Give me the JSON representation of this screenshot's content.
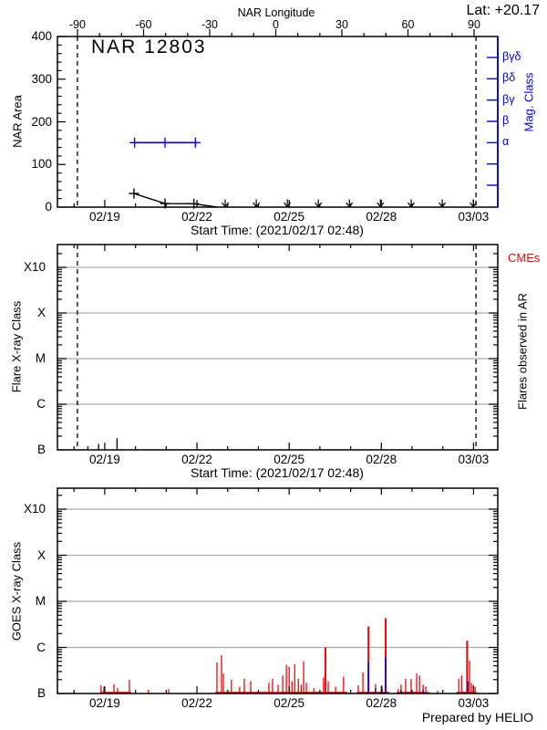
{
  "labels": {
    "lat": "Lat: +20.17",
    "top_axis_title": "NAR Longitude",
    "panel1_title": "NAR 12803",
    "panel1_ylabel": "NAR Area",
    "mag_class_axis": "Mag. Class",
    "start_time": "Start Time: (2021/02/17 02:48)",
    "panel2_ylabel": "Flare X-ray Class",
    "cmes": "CMEs",
    "flares_observed": "Flares observed in AR",
    "panel3_ylabel": "GOES X-ray Class",
    "credit": "Prepared by HELIO"
  },
  "colors": {
    "blue": "#0000ee",
    "red": "#ff0000",
    "grid": "#aaaaaa",
    "black": "#000000"
  },
  "chart_data": [
    {
      "type": "line",
      "panel": "nar-area",
      "title": "NAR 12803",
      "latitude": "+20.17",
      "x_axis": {
        "label": "Start Time: (2021/02/17 02:48)",
        "tick_days": [
          19,
          22,
          25,
          28,
          31
        ],
        "tick_labels": [
          "02/19",
          "02/22",
          "02/25",
          "02/28",
          "03/03"
        ],
        "range_days": [
          17.46,
          31.79
        ]
      },
      "top_axis": {
        "title": "NAR Longitude",
        "tick_lons": [
          -90,
          -60,
          -30,
          0,
          30,
          60,
          90
        ],
        "tick_labels": [
          "-90",
          "-60",
          "-30",
          "0",
          "30",
          "60",
          "90"
        ],
        "minor_step_deg": 10
      },
      "y_axis": {
        "label": "NAR Area",
        "range": [
          0,
          400
        ],
        "ticks": [
          0,
          100,
          200,
          300,
          400
        ],
        "minor_step": 20
      },
      "right_axis": {
        "label": "Mag. Class",
        "tick_labels": [
          "βγδ",
          "βδ",
          "βγ",
          "β",
          "α",
          "",
          ""
        ]
      },
      "limb_crossing_days": [
        18.11,
        31.08
      ],
      "area_series": {
        "days": [
          19.95,
          20.96,
          21.9
        ],
        "values": [
          32,
          8.5,
          8
        ],
        "tail_zero_day": 22.65
      },
      "area_upper_limit_days": [
        22.92,
        23.93,
        24.94,
        25.95,
        26.96,
        27.97,
        28.97,
        29.98,
        30.99
      ],
      "mag_series": {
        "days": [
          19.97,
          20.96,
          21.95
        ],
        "class": "α"
      }
    },
    {
      "type": "spikes",
      "panel": "flares-in-ar",
      "y_axis": {
        "label": "Flare X-ray Class",
        "tick_labels": [
          "B",
          "C",
          "M",
          "X",
          "X10"
        ]
      },
      "right_labels": {
        "cmes": "CMEs",
        "flares": "Flares observed in AR"
      },
      "x_axis": {
        "label": "Start Time: (2021/02/17 02:48)",
        "tick_days": [
          19,
          22,
          25,
          28,
          31
        ],
        "tick_labels": [
          "02/19",
          "02/22",
          "02/25",
          "02/28",
          "03/03"
        ],
        "range_days": [
          17.46,
          31.79
        ]
      },
      "limb_crossing_days": [
        18.11,
        31.08
      ],
      "flare_spikes_day_flux1e7": [
        [
          18.45,
          1.2
        ],
        [
          18.8,
          1.35
        ],
        [
          19.4,
          1.8
        ]
      ]
    },
    {
      "type": "spikes",
      "panel": "goes-xray",
      "y_axis": {
        "label": "GOES X-ray Class",
        "tick_labels": [
          "B",
          "C",
          "M",
          "X",
          "X10"
        ]
      },
      "x_axis": {
        "tick_days": [
          19,
          22,
          25,
          28,
          31
        ],
        "tick_labels": [
          "02/19",
          "02/22",
          "02/25",
          "02/28",
          "03/03"
        ],
        "range_days": [
          17.46,
          31.79
        ]
      },
      "credit": "Prepared by HELIO",
      "goes_red_day_flux1e7": [
        [
          18.88,
          1.5
        ],
        [
          18.97,
          1.4
        ],
        [
          19.3,
          1.6
        ],
        [
          19.42,
          1.3
        ],
        [
          19.8,
          2.0
        ],
        [
          20.42,
          1.2
        ],
        [
          21.08,
          1.25
        ],
        [
          22.65,
          4.7
        ],
        [
          22.8,
          6.8
        ],
        [
          22.86,
          2.7
        ],
        [
          23.12,
          2.0
        ],
        [
          23.39,
          1.4
        ],
        [
          23.54,
          2.1
        ],
        [
          23.75,
          1.85
        ],
        [
          23.99,
          1.1
        ],
        [
          24.34,
          1.7
        ],
        [
          24.46,
          2.1
        ],
        [
          24.64,
          1.55
        ],
        [
          24.79,
          2.45
        ],
        [
          24.91,
          4.2
        ],
        [
          25.0,
          3.8
        ],
        [
          25.09,
          1.85
        ],
        [
          25.18,
          4.35
        ],
        [
          25.3,
          2.1
        ],
        [
          25.39,
          1.55
        ],
        [
          25.47,
          5.0
        ],
        [
          25.56,
          1.7
        ],
        [
          25.8,
          1.3
        ],
        [
          26.12,
          2.2
        ],
        [
          26.18,
          10.0
        ],
        [
          26.27,
          1.85
        ],
        [
          26.51,
          1.4
        ],
        [
          26.77,
          2.3
        ],
        [
          27.25,
          1.5
        ],
        [
          27.4,
          2.9
        ],
        [
          27.58,
          28.5
        ],
        [
          27.81,
          1.6
        ],
        [
          28.02,
          1.5
        ],
        [
          28.14,
          43.0
        ],
        [
          28.55,
          1.25
        ],
        [
          28.64,
          1.55
        ],
        [
          28.79,
          2.1
        ],
        [
          28.97,
          2.05
        ],
        [
          29.15,
          2.7
        ],
        [
          29.24,
          2.45
        ],
        [
          29.36,
          1.55
        ],
        [
          29.45,
          1.4
        ],
        [
          29.83,
          1.15
        ],
        [
          30.52,
          2.1
        ],
        [
          30.61,
          2.45
        ],
        [
          30.79,
          14.0
        ],
        [
          30.87,
          5.2
        ],
        [
          30.93,
          1.7
        ],
        [
          30.99,
          1.55
        ],
        [
          31.05,
          1.4
        ]
      ],
      "goes_blue_day_flux1e7": [
        [
          27.58,
          4.7
        ],
        [
          27.81,
          1.3
        ],
        [
          28.02,
          1.3
        ],
        [
          28.14,
          6.0
        ],
        [
          28.64,
          1.2
        ],
        [
          29.36,
          1.2
        ],
        [
          30.82,
          1.85
        ]
      ],
      "baseline_day_segments": [
        [
          18.85,
          19.85
        ],
        [
          22.6,
          26.9
        ],
        [
          27.2,
          28.25
        ],
        [
          28.5,
          29.55
        ],
        [
          30.45,
          31.1
        ]
      ]
    }
  ]
}
